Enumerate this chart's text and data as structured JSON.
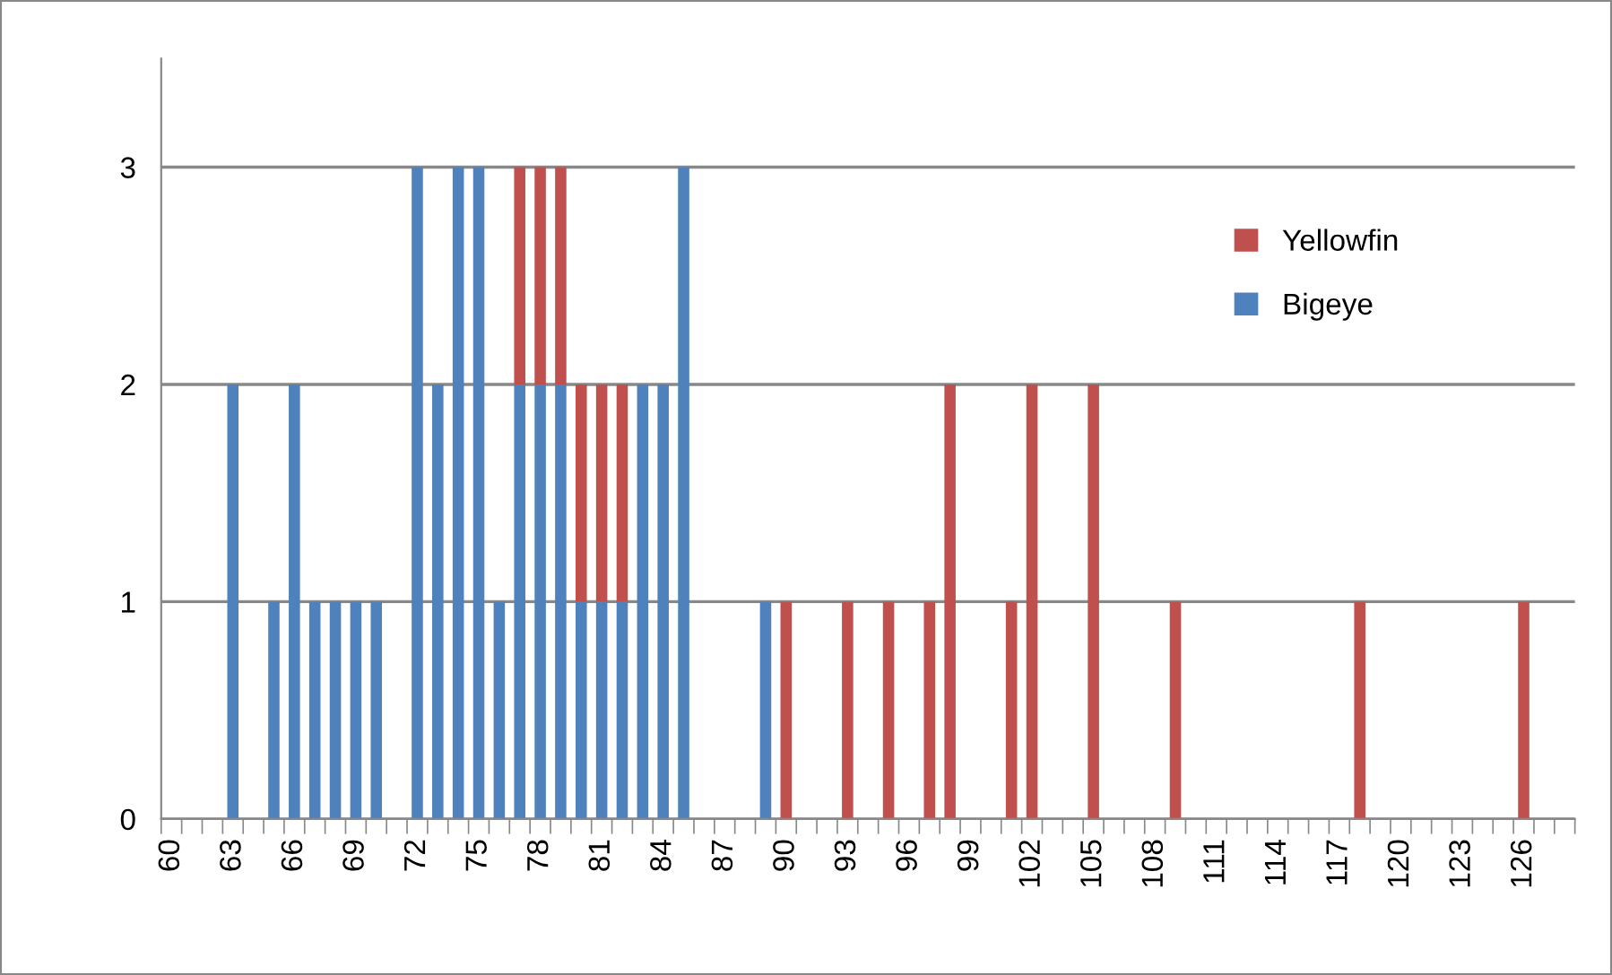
{
  "chart_data": {
    "type": "bar",
    "stacked": true,
    "categories": [
      "60",
      null,
      null,
      "63",
      null,
      null,
      "66",
      null,
      null,
      "69",
      null,
      null,
      "72",
      null,
      null,
      "75",
      null,
      null,
      "78",
      null,
      null,
      "81",
      null,
      null,
      "84",
      null,
      null,
      "87",
      null,
      null,
      "90",
      null,
      null,
      "93",
      null,
      null,
      "96",
      null,
      null,
      "99",
      null,
      null,
      "102",
      null,
      null,
      "105",
      null,
      null,
      "108",
      null,
      null,
      "111",
      null,
      null,
      "114",
      null,
      null,
      "117",
      null,
      null,
      "120",
      null,
      null,
      "123",
      null,
      null,
      "126",
      null,
      null
    ],
    "series": [
      {
        "name": "Bigeye",
        "color": "#4f81bd",
        "values": [
          0,
          0,
          0,
          2,
          0,
          1,
          2,
          1,
          1,
          1,
          1,
          0,
          3,
          2,
          3,
          3,
          1,
          2,
          2,
          2,
          1,
          1,
          1,
          2,
          2,
          3,
          0,
          0,
          0,
          1,
          0,
          0,
          0,
          0,
          0,
          0,
          0,
          0,
          0,
          0,
          0,
          0,
          0,
          0,
          0,
          0,
          0,
          0,
          0,
          0,
          0,
          0,
          0,
          0,
          0,
          0,
          0,
          0,
          0,
          0,
          0,
          0,
          0,
          0,
          0,
          0,
          0,
          0,
          0
        ]
      },
      {
        "name": "Yellowfin",
        "color": "#c0504d",
        "values": [
          0,
          0,
          0,
          0,
          0,
          0,
          0,
          0,
          0,
          0,
          0,
          0,
          0,
          0,
          0,
          0,
          0,
          1,
          1,
          1,
          1,
          1,
          1,
          0,
          0,
          0,
          0,
          0,
          0,
          0,
          1,
          0,
          0,
          1,
          0,
          1,
          0,
          1,
          2,
          0,
          0,
          1,
          2,
          0,
          0,
          2,
          0,
          0,
          0,
          1,
          0,
          0,
          0,
          0,
          0,
          0,
          0,
          0,
          1,
          0,
          0,
          0,
          0,
          0,
          0,
          0,
          1,
          0,
          0
        ]
      }
    ],
    "ylim": [
      0,
      3.5
    ],
    "yticks": [
      0,
      1,
      2,
      3
    ],
    "grid": "y",
    "legend": "right"
  }
}
